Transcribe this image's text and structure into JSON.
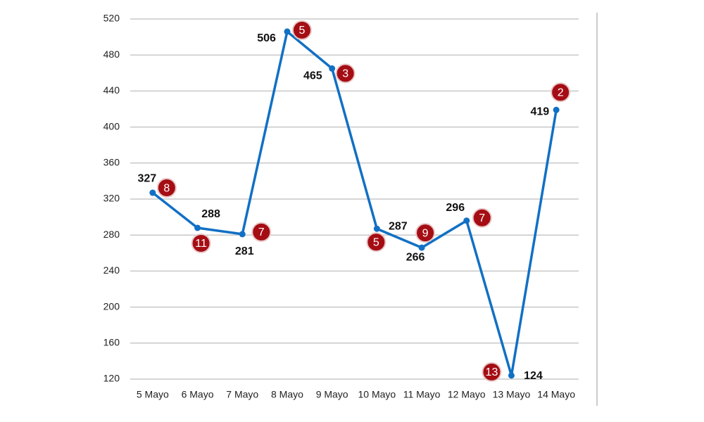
{
  "chart_data": {
    "type": "line",
    "categories": [
      "5 Mayo",
      "6 Mayo",
      "7 Mayo",
      "8 Mayo",
      "9 Mayo",
      "10 Mayo",
      "11 Mayo",
      "12 Mayo",
      "13 Mayo",
      "14 Mayo"
    ],
    "series": [
      {
        "color": "#1170c4",
        "values": [
          327,
          288,
          281,
          506,
          465,
          287,
          266,
          296,
          124,
          419
        ],
        "badges": [
          8,
          11,
          7,
          5,
          3,
          5,
          9,
          7,
          13,
          2
        ],
        "badge_color": "#a50d14"
      }
    ],
    "ylim": [
      120,
      520
    ],
    "yticks": [
      120,
      160,
      200,
      240,
      280,
      320,
      360,
      400,
      440,
      480,
      520
    ],
    "grid": true
  }
}
